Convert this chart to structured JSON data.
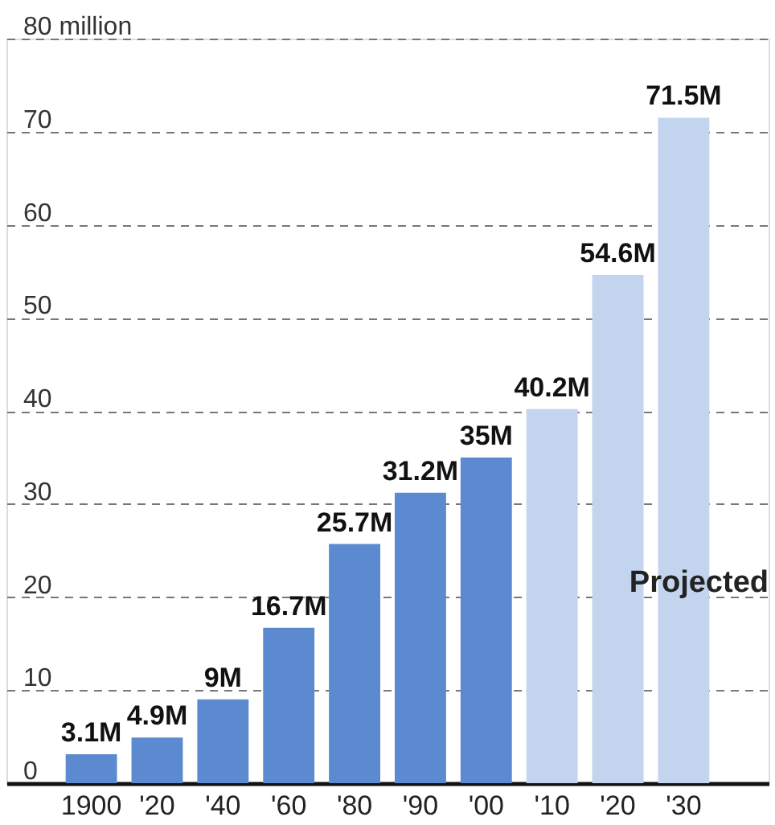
{
  "chart_data": {
    "type": "bar",
    "categories": [
      "1900",
      "'20",
      "'40",
      "'60",
      "'80",
      "'90",
      "'00",
      "'10",
      "'20",
      "'30"
    ],
    "values": [
      3.1,
      4.9,
      9,
      16.7,
      25.7,
      31.2,
      35,
      40.2,
      54.6,
      71.5
    ],
    "colors": [
      "#5b8ad0",
      "#5b8ad0",
      "#5b8ad0",
      "#5b8ad0",
      "#5b8ad0",
      "#5b8ad0",
      "#5b8ad0",
      "#c3d4ee",
      "#c3d4ee",
      "#c3d4ee"
    ],
    "value_labels": [
      "3.1M",
      "4.9M",
      "9M",
      "16.7M",
      "25.7M",
      "31.2M",
      "35M",
      "40.2M",
      "54.6M",
      "71.5M"
    ],
    "ylim": [
      0,
      80
    ],
    "yticks": [
      0,
      10,
      20,
      30,
      40,
      50,
      60,
      70,
      {
        "value": 80,
        "label": "80 million"
      }
    ],
    "grid": "y",
    "line_style": "dashed",
    "annotations": [
      "Projected"
    ]
  }
}
